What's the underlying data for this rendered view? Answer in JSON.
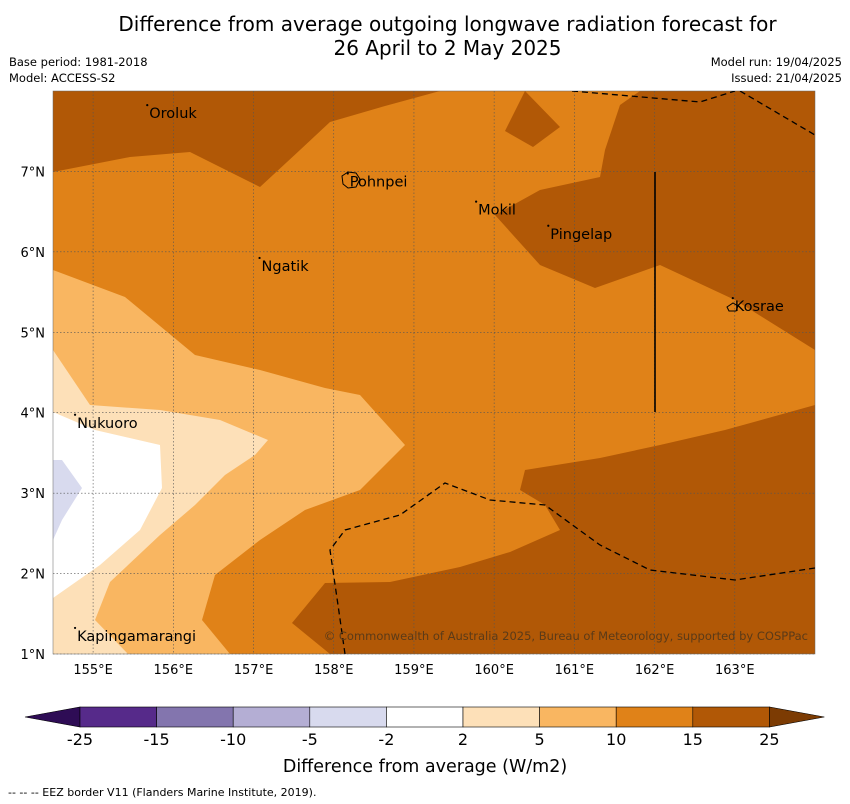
{
  "title_line1": "Difference from average outgoing longwave radiation forecast for",
  "title_line2": "26 April to 2 May 2025",
  "base_period": "Base period: 1981-2018",
  "model": "Model: ACCESS-S2",
  "model_run": "Model run: 19/04/2025",
  "issued": "Issued: 21/04/2025",
  "x_ticks": [
    "155°E",
    "156°E",
    "157°E",
    "158°E",
    "159°E",
    "160°E",
    "161°E",
    "162°E",
    "163°E"
  ],
  "y_ticks": [
    "1°N",
    "2°N",
    "3°N",
    "4°N",
    "5°N",
    "6°N",
    "7°N"
  ],
  "places": [
    {
      "name": "Oroluk",
      "lon": 155.7,
      "lat": 7.7
    },
    {
      "name": "Pohnpei",
      "lon": 158.2,
      "lat": 6.85
    },
    {
      "name": "Mokil",
      "lon": 159.8,
      "lat": 6.5
    },
    {
      "name": "Pingelap",
      "lon": 160.7,
      "lat": 6.2
    },
    {
      "name": "Ngatik",
      "lon": 157.1,
      "lat": 5.8
    },
    {
      "name": "Kosrae",
      "lon": 163.0,
      "lat": 5.3
    },
    {
      "name": "Nukuoro",
      "lon": 154.8,
      "lat": 3.85
    },
    {
      "name": "Kapingamarangi",
      "lon": 154.8,
      "lat": 1.2
    }
  ],
  "copyright": "© Commonwealth of Australia 2025, Bureau of Meteorology, supported by COSPPac",
  "colorbar": {
    "labels": [
      "-25",
      "-15",
      "-10",
      "-5",
      "-2",
      "2",
      "5",
      "10",
      "15",
      "25"
    ],
    "colors": [
      "#2e0c55",
      "#562a8a",
      "#8375ae",
      "#b4aed4",
      "#d8daee",
      "#ffffff",
      "#fde0b8",
      "#f9b661",
      "#e08218",
      "#b15806",
      "#7c3b03"
    ],
    "label": "Difference from average (W/m2)"
  },
  "footer": "--  --  -- EEZ border V11 (Flanders Marine Institute, 2019).",
  "chart_data": {
    "type": "heatmap",
    "xlim": [
      154.5,
      164.0
    ],
    "ylim": [
      1.0,
      8.0
    ],
    "x_unit": "°E",
    "y_unit": "°N",
    "legend_placement": "bottom",
    "grid": true
  }
}
